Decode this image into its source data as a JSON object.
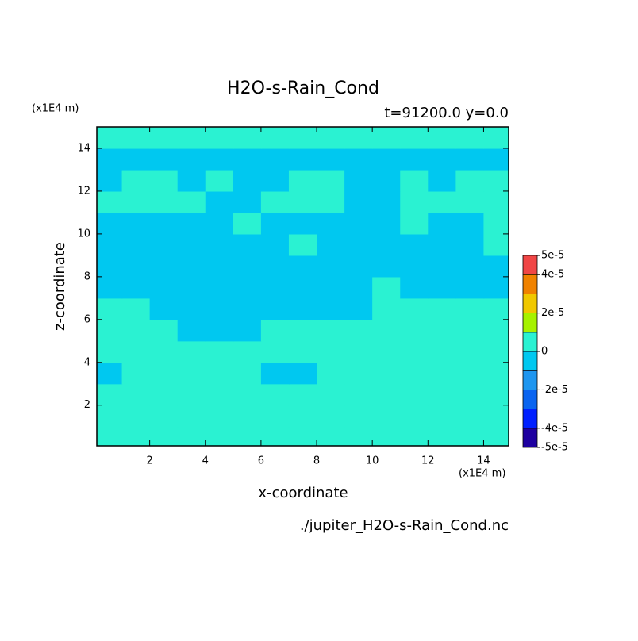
{
  "chart_data": {
    "type": "contour",
    "title": "H2O-s-Rain_Cond",
    "subtitle": "t=91200.0 y=0.0",
    "x_label": "x-coordinate",
    "y_label": "z-coordinate",
    "x_unit": "(x1E4 m)",
    "y_unit": "(x1E4 m)",
    "source": "./jupiter_H2O-s-Rain_Cond.nc",
    "xlim": [
      0.1,
      14.9
    ],
    "ylim": [
      0.1,
      15
    ],
    "xticks": [
      2,
      4,
      6,
      8,
      10,
      12,
      14
    ],
    "yticks": [
      2,
      4,
      6,
      8,
      10,
      12,
      14
    ],
    "x": [
      0.5,
      1.5,
      2.5,
      3.5,
      4.5,
      5.5,
      6.5,
      7.5,
      8.5,
      9.5,
      10.5,
      11.5,
      12.5,
      13.5,
      14.5
    ],
    "y": [
      0.5,
      1.5,
      2.5,
      3.5,
      4.5,
      5.5,
      6.5,
      7.5,
      8.5,
      9.5,
      10.5,
      11.5,
      12.5,
      13.5,
      14.5
    ],
    "z": [
      [
        5e-06,
        5e-06,
        5e-06,
        5e-06,
        5e-06,
        5e-06,
        5e-06,
        5e-06,
        5e-06,
        5e-06,
        5e-06,
        5e-06,
        5e-06,
        5e-06,
        5e-06
      ],
      [
        5e-06,
        5e-06,
        5e-06,
        5e-06,
        5e-06,
        5e-06,
        5e-06,
        5e-06,
        5e-06,
        5e-06,
        5e-06,
        5e-06,
        5e-06,
        5e-06,
        5e-06
      ],
      [
        5e-06,
        5e-06,
        5e-06,
        5e-06,
        5e-06,
        5e-06,
        5e-06,
        5e-06,
        5e-06,
        5e-06,
        5e-06,
        5e-06,
        5e-06,
        5e-06,
        5e-06
      ],
      [
        -5e-06,
        5e-06,
        5e-06,
        5e-06,
        5e-06,
        5e-06,
        -5e-06,
        -5e-06,
        5e-06,
        5e-06,
        5e-06,
        5e-06,
        5e-06,
        5e-06,
        5e-06
      ],
      [
        5e-06,
        5e-06,
        5e-06,
        5e-06,
        5e-06,
        5e-06,
        5e-06,
        5e-06,
        5e-06,
        5e-06,
        5e-06,
        5e-06,
        5e-06,
        5e-06,
        5e-06
      ],
      [
        5e-06,
        5e-06,
        5e-06,
        -5e-06,
        -5e-06,
        -5e-06,
        5e-06,
        5e-06,
        5e-06,
        5e-06,
        5e-06,
        5e-06,
        5e-06,
        5e-06,
        5e-06
      ],
      [
        5e-06,
        5e-06,
        -5e-06,
        -5e-06,
        -5e-06,
        -5e-06,
        -5e-06,
        -5e-06,
        -5e-06,
        -5e-06,
        5e-06,
        5e-06,
        5e-06,
        5e-06,
        5e-06
      ],
      [
        -5e-06,
        -5e-06,
        -5e-06,
        -5e-06,
        -5e-06,
        -5e-06,
        -5e-06,
        -5e-06,
        -5e-06,
        -5e-06,
        5e-06,
        -5e-06,
        -5e-06,
        -5e-06,
        -5e-06
      ],
      [
        -5e-06,
        -5e-06,
        -5e-06,
        -5e-06,
        -5e-06,
        -5e-06,
        -5e-06,
        -5e-06,
        -5e-06,
        -5e-06,
        -5e-06,
        -5e-06,
        -5e-06,
        -5e-06,
        -5e-06
      ],
      [
        -5e-06,
        -5e-06,
        -5e-06,
        -5e-06,
        -5e-06,
        -5e-06,
        -5e-06,
        5e-06,
        -5e-06,
        -5e-06,
        -5e-06,
        -5e-06,
        -5e-06,
        -5e-06,
        5e-06
      ],
      [
        -5e-06,
        -5e-06,
        -5e-06,
        -5e-06,
        -5e-06,
        5e-06,
        -5e-06,
        -5e-06,
        -5e-06,
        -5e-06,
        -5e-06,
        5e-06,
        -5e-06,
        -5e-06,
        5e-06
      ],
      [
        5e-06,
        5e-06,
        5e-06,
        5e-06,
        -5e-06,
        -5e-06,
        5e-06,
        5e-06,
        5e-06,
        -5e-06,
        -5e-06,
        5e-06,
        5e-06,
        5e-06,
        5e-06
      ],
      [
        -5e-06,
        5e-06,
        5e-06,
        -5e-06,
        5e-06,
        -5e-06,
        -5e-06,
        5e-06,
        5e-06,
        -5e-06,
        -5e-06,
        5e-06,
        -5e-06,
        5e-06,
        5e-06
      ],
      [
        -5e-06,
        -5e-06,
        -5e-06,
        -5e-06,
        -5e-06,
        -5e-06,
        -5e-06,
        -5e-06,
        -5e-06,
        -5e-06,
        -5e-06,
        -5e-06,
        -5e-06,
        -5e-06,
        -5e-06
      ],
      [
        5e-06,
        5e-06,
        5e-06,
        5e-06,
        5e-06,
        5e-06,
        5e-06,
        5e-06,
        5e-06,
        5e-06,
        5e-06,
        5e-06,
        5e-06,
        5e-06,
        5e-06
      ]
    ],
    "levels": [
      -5e-05,
      -4e-05,
      -3e-05,
      -2e-05,
      -1e-05,
      0,
      1e-05,
      2e-05,
      3e-05,
      4e-05,
      5e-05
    ],
    "colors": [
      "#1e00a0",
      "#0020ff",
      "#0a64f0",
      "#1e96f0",
      "#00c8f0",
      "#2af2d2",
      "#a6f200",
      "#f0c800",
      "#f08200",
      "#f04646",
      "#ff5a5a"
    ],
    "colorbar_ticks": [
      {
        "value": 5e-05,
        "label": "5e-5"
      },
      {
        "value": 4e-05,
        "label": "4e-5"
      },
      {
        "value": 2e-05,
        "label": "2e-5"
      },
      0,
      {
        "value": -2e-05,
        "label": "-2e-5"
      },
      {
        "value": -4e-05,
        "label": "-4e-5"
      },
      {
        "value": -5e-05,
        "label": "-5e-5"
      }
    ]
  }
}
